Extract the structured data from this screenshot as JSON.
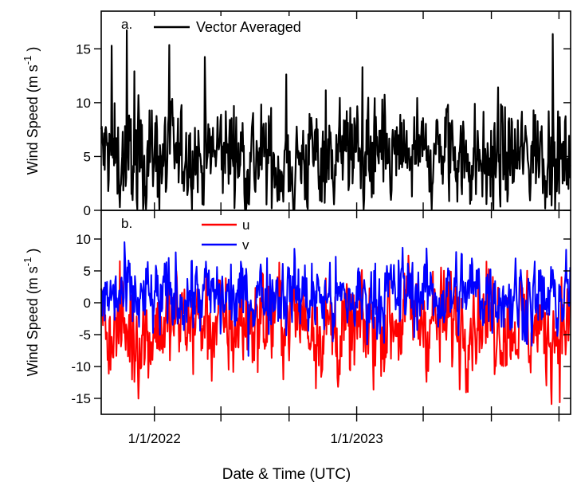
{
  "chart_data": [
    {
      "type": "line",
      "panel_tag": "a.",
      "ylabel": "Wind Speed (m s-1)",
      "ylabel_text": "Wind Speed (m s",
      "ylabel_sup": "-1",
      "ylabel_close": ")",
      "ylim": [
        0,
        18.5
      ],
      "yticks": [
        0,
        5,
        10,
        15
      ],
      "ytick_labels": [
        "0",
        "5",
        "10",
        "15"
      ],
      "x_range": [
        "2021-09-27",
        "2024-01-22"
      ],
      "series": [
        {
          "name": "Vector Averaged",
          "color": "#000000",
          "x": [
            "2021-10-08",
            "2021-11-08",
            "2021-12-08",
            "2022-01-08",
            "2022-02-08",
            "2022-03-08",
            "2022-04-08",
            "2022-05-08",
            "2022-06-08",
            "2022-07-08",
            "2022-08-08",
            "2022-09-08",
            "2022-10-08",
            "2022-11-08",
            "2022-12-08",
            "2023-01-08",
            "2023-02-08",
            "2023-03-08",
            "2023-04-08",
            "2023-05-08",
            "2023-06-08",
            "2023-07-08",
            "2023-08-08",
            "2023-09-08",
            "2023-10-08",
            "2023-11-08",
            "2023-12-08",
            "2024-01-08"
          ],
          "y": [
            5.2,
            4.6,
            5.4,
            4.8,
            5.1,
            4.5,
            4.9,
            5.6,
            5.2,
            4.7,
            4.4,
            4.1,
            5.0,
            5.3,
            5.6,
            4.9,
            4.7,
            4.6,
            5.1,
            5.0,
            4.9,
            5.3,
            4.4,
            4.6,
            4.9,
            5.1,
            5.9,
            4.7
          ]
        }
      ]
    },
    {
      "type": "line",
      "panel_tag": "b.",
      "ylabel": "Wind Speed (m s-1)",
      "ylabel_text": "Wind Speed (m s",
      "ylabel_sup": "-1",
      "ylabel_close": ")",
      "ylim": [
        -17.5,
        14.5
      ],
      "yticks": [
        -15,
        -10,
        -5,
        0,
        5,
        10
      ],
      "ytick_labels": [
        "-15",
        "-10",
        "-5",
        "0",
        "5",
        "10"
      ],
      "x_range": [
        "2021-09-27",
        "2024-01-22"
      ],
      "xticks": [
        "2022-01-01",
        "2023-01-01"
      ],
      "xtick_labels": [
        "1/1/2022",
        "1/1/2023"
      ],
      "xlabel": "Date & Time (UTC)",
      "series": [
        {
          "name": "u",
          "color": "#ff0000",
          "x": [
            "2021-10-08",
            "2021-11-08",
            "2021-12-08",
            "2022-01-08",
            "2022-02-08",
            "2022-03-08",
            "2022-04-08",
            "2022-05-08",
            "2022-06-08",
            "2022-07-08",
            "2022-08-08",
            "2022-09-08",
            "2022-10-08",
            "2022-11-08",
            "2022-12-08",
            "2023-01-08",
            "2023-02-08",
            "2023-03-08",
            "2023-04-08",
            "2023-05-08",
            "2023-06-08",
            "2023-07-08",
            "2023-08-08",
            "2023-09-08",
            "2023-10-08",
            "2023-11-08",
            "2023-12-08",
            "2024-01-08"
          ],
          "y": [
            -3.5,
            -4.0,
            -5.0,
            -4.0,
            -3.0,
            -2.5,
            -3.5,
            -3.8,
            -3.5,
            -2.5,
            -2.0,
            -1.5,
            -3.0,
            -4.0,
            -5.0,
            -4.5,
            -3.0,
            -2.5,
            -2.0,
            -2.5,
            -3.0,
            -2.5,
            -2.0,
            -2.5,
            -3.0,
            -3.5,
            -5.0,
            -3.5
          ]
        },
        {
          "name": "v",
          "color": "#0000ff",
          "x": [
            "2021-10-08",
            "2021-11-08",
            "2021-12-08",
            "2022-01-08",
            "2022-02-08",
            "2022-03-08",
            "2022-04-08",
            "2022-05-08",
            "2022-06-08",
            "2022-07-08",
            "2022-08-08",
            "2022-09-08",
            "2022-10-08",
            "2022-11-08",
            "2022-12-08",
            "2023-01-08",
            "2023-02-08",
            "2023-03-08",
            "2023-04-08",
            "2023-05-08",
            "2023-06-08",
            "2023-07-08",
            "2023-08-08",
            "2023-09-08",
            "2023-10-08",
            "2023-11-08",
            "2023-12-08",
            "2024-01-08"
          ],
          "y": [
            0.5,
            1.0,
            0.5,
            0.0,
            1.0,
            1.5,
            1.0,
            0.5,
            0.5,
            1.5,
            2.0,
            2.0,
            1.0,
            0.5,
            0.0,
            0.5,
            1.0,
            1.5,
            2.0,
            1.5,
            1.0,
            1.5,
            2.0,
            1.5,
            1.0,
            0.5,
            0.0,
            1.0
          ]
        }
      ]
    }
  ]
}
